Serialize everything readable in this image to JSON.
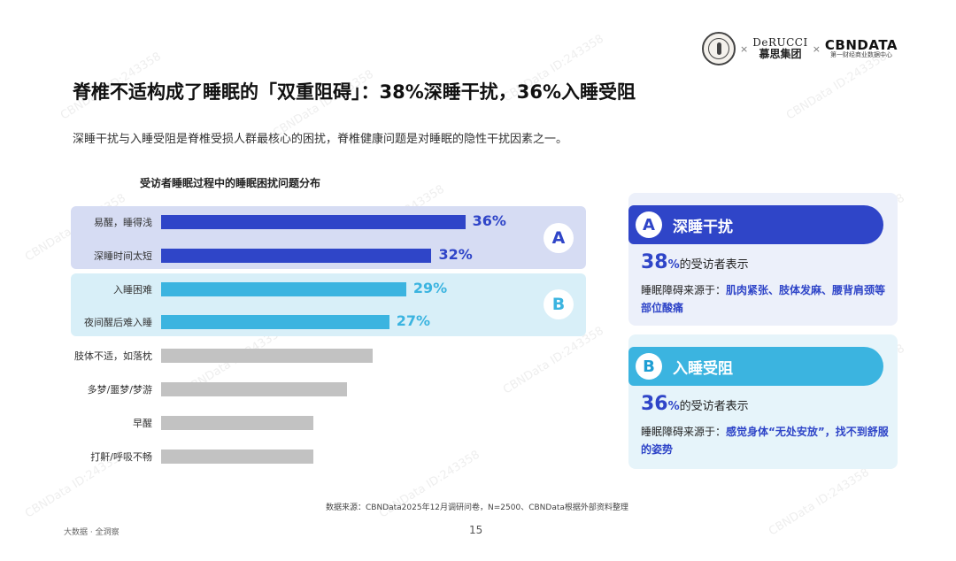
{
  "header": {
    "seal_label": "seal logo",
    "brand_en": "DeRUCCI",
    "brand_cn": "慕思集团",
    "times_sign": "×",
    "partner_en": "CBNDATA",
    "partner_cn": "第一财经商业数据中心"
  },
  "title": "脊椎不适构成了睡眠的「双重阻碍」：38%深睡干扰，36%入睡受阻",
  "subtitle": "深睡干扰与入睡受阻是脊椎受损人群最核心的困扰，脊椎健康问题是对睡眠的隐性干扰因素之一。",
  "chart_data": {
    "type": "bar",
    "orientation": "horizontal",
    "title": "受访者睡眠过程中的睡眠困扰问题分布",
    "categories": [
      "易醒，睡得浅",
      "深睡时间太短",
      "入睡困难",
      "夜间醒后难入睡",
      "肢体不适，如落枕",
      "多梦/噩梦/梦游",
      "早醒",
      "打鼾/呼吸不畅"
    ],
    "values": [
      36,
      32,
      29,
      27,
      25,
      22,
      18,
      18
    ],
    "value_labels": [
      "36%",
      "32%",
      "29%",
      "27%",
      "",
      "",
      "",
      ""
    ],
    "groups": [
      {
        "name": "A",
        "indices": [
          0,
          1
        ],
        "color": "#2f45c8"
      },
      {
        "name": "B",
        "indices": [
          2,
          3
        ],
        "color": "#3bb4e0"
      }
    ],
    "other_color": "#c2c2c2",
    "xlim": [
      0,
      44
    ]
  },
  "cards": [
    {
      "badge": "A",
      "title": "深睡干扰",
      "stat_num": "38",
      "stat_pct": "%",
      "stat_text": "的受访者表示",
      "desc_prefix": "睡眠障碍来源于：",
      "desc_highlight": "肌肉紧张、肢体发麻、腰背肩颈等部位酸痛"
    },
    {
      "badge": "B",
      "title": "入睡受阻",
      "stat_num": "36",
      "stat_pct": "%",
      "stat_text": "的受访者表示",
      "desc_prefix": "睡眠障碍来源于：",
      "desc_highlight": "感觉身体“无处安放”，找不到舒服的姿势"
    }
  ],
  "footer": {
    "source": "数据来源：CBNData2025年12月调研问卷，N=2500、CBNData根据外部资料整理",
    "left": "大数据 · 全洞察",
    "page": "15"
  },
  "watermark_text": "CBNData ID:243358",
  "colors": {
    "group_a": "#2f45c8",
    "group_b": "#3bb4e0",
    "other": "#c2c2c2"
  }
}
